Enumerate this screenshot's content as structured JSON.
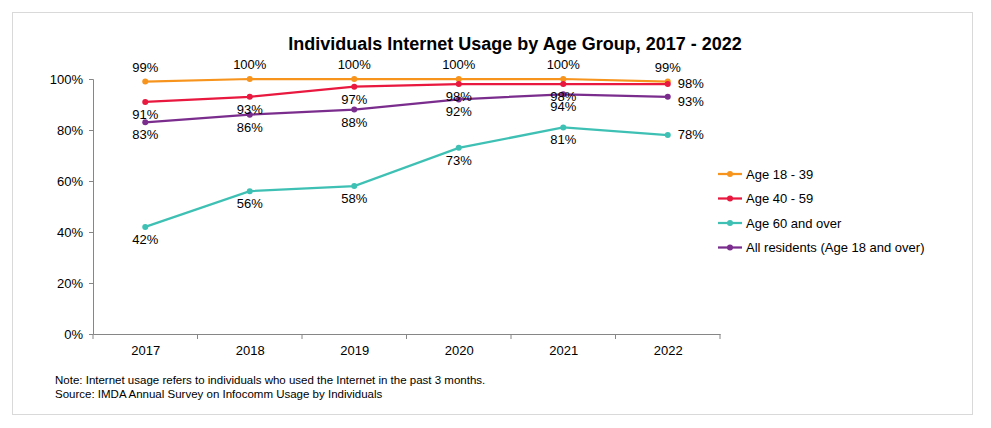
{
  "chart_data": {
    "type": "line",
    "title": "Individuals Internet Usage by Age Group, 2017 - 2022",
    "categories": [
      "2017",
      "2018",
      "2019",
      "2020",
      "2021",
      "2022"
    ],
    "series": [
      {
        "name": "Age 18 - 39",
        "color": "#F7941D",
        "values": [
          99,
          100,
          100,
          100,
          100,
          99
        ],
        "value_labels": [
          "99%",
          "100%",
          "100%",
          "100%",
          "100%",
          "99%"
        ]
      },
      {
        "name": "Age 40 - 59",
        "color": "#E8183E",
        "values": [
          91,
          93,
          97,
          98,
          98,
          98
        ],
        "value_labels": [
          "91%",
          "93%",
          "97%",
          "98%",
          "98%",
          "98%"
        ]
      },
      {
        "name": "Age 60 and over",
        "color": "#3EC1B4",
        "values": [
          42,
          56,
          58,
          73,
          81,
          78
        ],
        "value_labels": [
          "42%",
          "56%",
          "58%",
          "73%",
          "81%",
          "78%"
        ]
      },
      {
        "name": "All residents (Age 18 and over)",
        "color": "#7B2D8E",
        "values": [
          83,
          86,
          88,
          92,
          94,
          93
        ],
        "value_labels": [
          "83%",
          "86%",
          "88%",
          "92%",
          "94%",
          "93%"
        ]
      }
    ],
    "ylim": [
      0,
      100
    ],
    "yticks": [
      {
        "value": 0,
        "label": "0%"
      },
      {
        "value": 20,
        "label": "20%"
      },
      {
        "value": 40,
        "label": "40%"
      },
      {
        "value": 60,
        "label": "60%"
      },
      {
        "value": 80,
        "label": "80%"
      },
      {
        "value": 100,
        "label": "100%"
      }
    ],
    "grid": false,
    "legend": "right",
    "data_labels": true,
    "marker": "circle",
    "notes": [
      "Note: Internet usage refers to individuals who used the Internet in the past 3 months.",
      "Source: IMDA Annual Survey on Infocomm Usage by Individuals"
    ]
  }
}
